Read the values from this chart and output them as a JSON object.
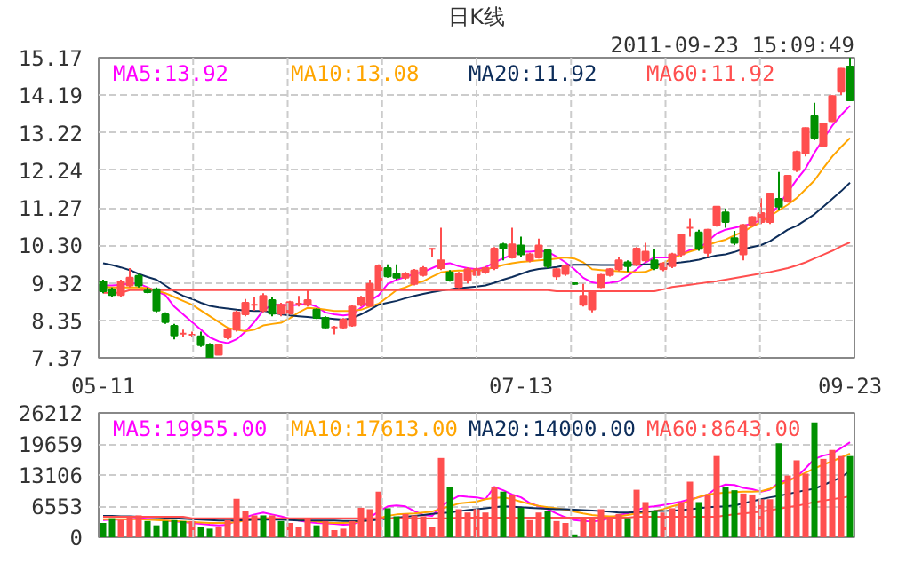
{
  "chart_data": [
    {
      "type": "candlestick",
      "title": "日K线",
      "annotations": [
        "2011-09-23 15:09:49"
      ],
      "categories": [
        "05-11",
        null,
        null,
        null,
        null,
        null,
        null,
        null,
        null,
        null,
        null,
        null,
        null,
        null,
        null,
        null,
        null,
        null,
        null,
        null,
        null,
        null,
        null,
        null,
        null,
        null,
        null,
        null,
        null,
        null,
        null,
        null,
        null,
        null,
        null,
        null,
        null,
        null,
        null,
        null,
        null,
        null,
        null,
        null,
        null,
        null,
        null,
        "07-13",
        null,
        null,
        null,
        null,
        null,
        null,
        null,
        null,
        null,
        null,
        null,
        null,
        null,
        null,
        null,
        null,
        null,
        null,
        null,
        null,
        null,
        null,
        null,
        null,
        null,
        null,
        null,
        null,
        null,
        null,
        null,
        null,
        null,
        null,
        null,
        null,
        "09-23"
      ],
      "ohlc": [
        [
          9.35,
          9.4,
          9.05,
          9.1
        ],
        [
          9.15,
          9.2,
          8.95,
          9.0
        ],
        [
          9.0,
          9.4,
          8.95,
          9.35
        ],
        [
          9.25,
          9.7,
          9.2,
          9.45
        ],
        [
          9.5,
          9.55,
          9.2,
          9.25
        ],
        [
          9.12,
          9.2,
          9.05,
          9.08
        ],
        [
          9.15,
          9.2,
          8.55,
          8.6
        ],
        [
          8.5,
          8.55,
          8.25,
          8.3
        ],
        [
          8.2,
          8.25,
          7.85,
          7.95
        ],
        [
          8.0,
          8.1,
          7.9,
          8.0
        ],
        [
          7.97,
          8.05,
          7.9,
          7.97
        ],
        [
          7.93,
          8.05,
          7.65,
          7.7
        ],
        [
          7.7,
          7.75,
          7.37,
          7.37
        ],
        [
          7.45,
          7.7,
          7.45,
          7.7
        ],
        [
          7.9,
          8.15,
          7.85,
          8.1
        ],
        [
          8.1,
          8.6,
          8.05,
          8.55
        ],
        [
          8.5,
          8.9,
          8.45,
          8.8
        ],
        [
          8.75,
          8.95,
          8.6,
          8.75
        ],
        [
          8.6,
          9.05,
          8.55,
          8.98
        ],
        [
          8.87,
          8.95,
          8.45,
          8.52
        ],
        [
          8.52,
          8.8,
          8.45,
          8.75
        ],
        [
          8.52,
          8.85,
          8.5,
          8.82
        ],
        [
          8.78,
          8.98,
          8.7,
          8.78
        ],
        [
          8.75,
          9.13,
          8.7,
          8.87
        ],
        [
          8.62,
          8.65,
          8.38,
          8.41
        ],
        [
          8.41,
          8.45,
          8.14,
          8.16
        ],
        [
          8.16,
          8.2,
          7.98,
          8.16
        ],
        [
          8.16,
          8.4,
          8.12,
          8.36
        ],
        [
          8.21,
          8.75,
          8.18,
          8.7
        ],
        [
          8.75,
          8.98,
          8.7,
          8.94
        ],
        [
          8.72,
          9.4,
          8.7,
          9.29
        ],
        [
          9.13,
          9.8,
          9.1,
          9.75
        ],
        [
          9.7,
          9.8,
          9.45,
          9.49
        ],
        [
          9.55,
          9.8,
          9.4,
          9.45
        ],
        [
          9.45,
          9.6,
          9.4,
          9.55
        ],
        [
          9.29,
          9.68,
          9.25,
          9.64
        ],
        [
          9.52,
          9.75,
          9.48,
          9.7
        ],
        [
          10.2,
          10.22,
          9.98,
          10.2
        ],
        [
          9.7,
          10.75,
          9.65,
          9.9
        ],
        [
          9.59,
          9.65,
          9.35,
          9.39
        ],
        [
          9.21,
          9.6,
          9.18,
          9.55
        ],
        [
          9.39,
          9.72,
          9.3,
          9.67
        ],
        [
          9.52,
          9.72,
          9.48,
          9.67
        ],
        [
          9.6,
          9.75,
          9.55,
          9.7
        ],
        [
          9.7,
          10.25,
          9.65,
          10.21
        ],
        [
          10.32,
          10.36,
          9.9,
          10.21
        ],
        [
          9.98,
          10.75,
          9.95,
          10.32
        ],
        [
          10.29,
          10.52,
          9.98,
          10.06
        ],
        [
          9.9,
          10.1,
          9.85,
          10.06
        ],
        [
          9.98,
          10.47,
          9.95,
          10.29
        ],
        [
          10.16,
          10.21,
          9.7,
          9.75
        ],
        [
          9.49,
          9.7,
          9.4,
          9.67
        ],
        [
          9.55,
          9.8,
          9.5,
          9.75
        ],
        [
          9.31,
          9.33,
          9.27,
          9.29
        ],
        [
          8.75,
          9.29,
          8.7,
          8.98
        ],
        [
          8.63,
          9.12,
          8.55,
          9.09
        ],
        [
          9.21,
          9.55,
          9.18,
          9.52
        ],
        [
          9.52,
          9.7,
          9.48,
          9.67
        ],
        [
          9.67,
          10.0,
          9.62,
          9.9
        ],
        [
          9.85,
          9.9,
          9.6,
          9.75
        ],
        [
          9.79,
          10.25,
          9.75,
          10.21
        ],
        [
          9.9,
          10.36,
          9.85,
          10.13
        ],
        [
          9.9,
          10.21,
          9.65,
          9.7
        ],
        [
          9.67,
          9.85,
          9.62,
          9.82
        ],
        [
          9.75,
          10.1,
          9.7,
          10.06
        ],
        [
          10.06,
          10.6,
          10.0,
          10.57
        ],
        [
          10.75,
          10.98,
          10.52,
          10.75
        ],
        [
          10.63,
          10.7,
          10.15,
          10.2
        ],
        [
          10.1,
          10.72,
          9.98,
          10.7
        ],
        [
          10.82,
          11.3,
          10.78,
          11.3
        ],
        [
          11.15,
          11.25,
          10.75,
          10.9
        ],
        [
          10.48,
          10.67,
          10.3,
          10.36
        ],
        [
          10.06,
          10.85,
          9.9,
          10.82
        ],
        [
          10.82,
          11.05,
          10.78,
          11.03
        ],
        [
          10.9,
          11.52,
          10.85,
          11.13
        ],
        [
          10.9,
          11.66,
          10.85,
          11.64
        ],
        [
          11.5,
          12.2,
          11.2,
          11.3
        ],
        [
          11.45,
          12.12,
          11.4,
          12.1
        ],
        [
          12.25,
          12.75,
          12.2,
          12.72
        ],
        [
          12.68,
          13.36,
          12.6,
          13.34
        ],
        [
          13.65,
          14.0,
          13.03,
          13.09
        ],
        [
          12.88,
          13.48,
          12.85,
          13.46
        ],
        [
          13.52,
          14.19,
          13.5,
          14.17
        ],
        [
          14.29,
          14.9,
          14.2,
          14.88
        ],
        [
          14.94,
          15.17,
          14.06,
          14.06
        ]
      ],
      "colors": [
        "#009000",
        "#009000",
        "#ff4f4f",
        "#ff4f4f",
        "#009000",
        "#009000",
        "#009000",
        "#009000",
        "#009000",
        "#ff4f4f",
        "#ff4f4f",
        "#009000",
        "#009000",
        "#ff4f4f",
        "#ff4f4f",
        "#ff4f4f",
        "#ff4f4f",
        "#ff4f4f",
        "#ff4f4f",
        "#009000",
        "#ff4f4f",
        "#ff4f4f",
        "#ff4f4f",
        "#ff4f4f",
        "#009000",
        "#009000",
        "#ff4f4f",
        "#ff4f4f",
        "#ff4f4f",
        "#ff4f4f",
        "#ff4f4f",
        "#ff4f4f",
        "#009000",
        "#009000",
        "#ff4f4f",
        "#ff4f4f",
        "#ff4f4f",
        "#ff4f4f",
        "#ff4f4f",
        "#009000",
        "#ff4f4f",
        "#ff4f4f",
        "#ff4f4f",
        "#ff4f4f",
        "#ff4f4f",
        "#009000",
        "#ff4f4f",
        "#009000",
        "#ff4f4f",
        "#ff4f4f",
        "#009000",
        "#ff4f4f",
        "#ff4f4f",
        "#009000",
        "#ff4f4f",
        "#ff4f4f",
        "#ff4f4f",
        "#ff4f4f",
        "#ff4f4f",
        "#009000",
        "#ff4f4f",
        "#ff4f4f",
        "#009000",
        "#ff4f4f",
        "#ff4f4f",
        "#ff4f4f",
        "#ff4f4f",
        "#009000",
        "#ff4f4f",
        "#ff4f4f",
        "#009000",
        "#009000",
        "#ff4f4f",
        "#ff4f4f",
        "#ff4f4f",
        "#ff4f4f",
        "#009000",
        "#ff4f4f",
        "#ff4f4f",
        "#ff4f4f",
        "#009000",
        "#ff4f4f",
        "#ff4f4f",
        "#ff4f4f",
        "#009000"
      ],
      "series": [
        {
          "name": "MA5:13.92",
          "type": "line",
          "color": "#ff00ff",
          "values": [
            9.25,
            9.25,
            9.27,
            9.3,
            9.3,
            9.2,
            9.1,
            9.0,
            8.7,
            8.5,
            8.3,
            8.1,
            7.9,
            7.8,
            7.75,
            7.85,
            8.05,
            8.3,
            8.6,
            8.75,
            8.75,
            8.73,
            8.75,
            8.78,
            8.7,
            8.55,
            8.5,
            8.47,
            8.5,
            8.67,
            8.85,
            9.0,
            9.29,
            9.4,
            9.47,
            9.55,
            9.6,
            9.7,
            9.8,
            9.83,
            9.75,
            9.7,
            9.67,
            9.72,
            9.85,
            9.95,
            10.05,
            10.13,
            10.13,
            10.15,
            10.13,
            10.0,
            9.85,
            9.67,
            9.45,
            9.33,
            9.29,
            9.32,
            9.36,
            9.5,
            9.67,
            9.85,
            9.98,
            9.98,
            9.98,
            10.06,
            10.17,
            10.21,
            10.4,
            10.6,
            10.7,
            10.75,
            10.8,
            10.87,
            10.95,
            11.06,
            11.35,
            11.67,
            12.0,
            12.29,
            12.7,
            13.06,
            13.4,
            13.68,
            13.92
          ]
        },
        {
          "name": "MA10:13.08",
          "type": "line",
          "color": "#ffa500",
          "values": [
            9.21,
            9.2,
            9.2,
            9.2,
            9.2,
            9.18,
            9.12,
            9.05,
            8.95,
            8.85,
            8.75,
            8.6,
            8.45,
            8.3,
            8.15,
            8.1,
            8.06,
            8.1,
            8.21,
            8.25,
            8.28,
            8.4,
            8.55,
            8.67,
            8.65,
            8.62,
            8.59,
            8.59,
            8.59,
            8.62,
            8.7,
            8.78,
            8.95,
            9.13,
            9.2,
            9.3,
            9.36,
            9.48,
            9.59,
            9.62,
            9.64,
            9.64,
            9.62,
            9.67,
            9.72,
            9.78,
            9.83,
            9.86,
            9.88,
            9.9,
            9.92,
            9.95,
            9.98,
            9.95,
            9.85,
            9.67,
            9.65,
            9.63,
            9.62,
            9.6,
            9.59,
            9.6,
            9.7,
            9.83,
            9.95,
            10.05,
            10.13,
            10.2,
            10.3,
            10.38,
            10.44,
            10.55,
            10.65,
            10.78,
            10.9,
            11.05,
            11.2,
            11.35,
            11.52,
            11.75,
            11.98,
            12.3,
            12.6,
            12.85,
            13.08
          ]
        },
        {
          "name": "MA20:11.92",
          "type": "line",
          "color": "#0d2d5a",
          "values": [
            9.83,
            9.78,
            9.72,
            9.65,
            9.55,
            9.47,
            9.4,
            9.25,
            9.1,
            8.98,
            8.9,
            8.8,
            8.72,
            8.68,
            8.65,
            8.62,
            8.6,
            8.59,
            8.59,
            8.55,
            8.5,
            8.47,
            8.45,
            8.43,
            8.41,
            8.4,
            8.38,
            8.36,
            8.4,
            8.5,
            8.62,
            8.75,
            8.8,
            8.85,
            8.92,
            8.98,
            9.03,
            9.08,
            9.12,
            9.15,
            9.18,
            9.2,
            9.22,
            9.25,
            9.32,
            9.4,
            9.47,
            9.55,
            9.63,
            9.68,
            9.7,
            9.73,
            9.77,
            9.79,
            9.79,
            9.79,
            9.78,
            9.78,
            9.78,
            9.79,
            9.79,
            9.8,
            9.8,
            9.81,
            9.83,
            9.85,
            9.88,
            9.92,
            9.98,
            10.03,
            10.06,
            10.12,
            10.2,
            10.25,
            10.3,
            10.4,
            10.55,
            10.7,
            10.8,
            10.95,
            11.1,
            11.3,
            11.5,
            11.7,
            11.92
          ]
        },
        {
          "name": "MA60:11.92",
          "type": "line",
          "color": "#ff4f4f",
          "values": [
            9.06,
            9.06,
            9.06,
            9.13,
            9.13,
            9.13,
            9.13,
            9.13,
            9.13,
            9.13,
            9.13,
            9.13,
            9.13,
            9.13,
            9.13,
            9.13,
            9.13,
            9.13,
            9.13,
            9.13,
            9.13,
            9.13,
            9.13,
            9.13,
            9.13,
            9.13,
            9.13,
            9.13,
            9.13,
            9.13,
            9.13,
            9.13,
            9.13,
            9.13,
            9.13,
            9.13,
            9.13,
            9.13,
            9.13,
            9.13,
            9.13,
            9.13,
            9.13,
            9.13,
            9.13,
            9.13,
            9.13,
            9.13,
            9.13,
            9.13,
            9.13,
            9.1,
            9.1,
            9.1,
            9.1,
            9.1,
            9.1,
            9.1,
            9.1,
            9.1,
            9.1,
            9.1,
            9.1,
            9.15,
            9.21,
            9.24,
            9.27,
            9.3,
            9.33,
            9.36,
            9.4,
            9.44,
            9.48,
            9.52,
            9.56,
            9.6,
            9.65,
            9.7,
            9.77,
            9.85,
            9.95,
            10.05,
            10.15,
            10.27,
            10.37
          ]
        }
      ],
      "ylim": [
        7.37,
        15.17
      ],
      "yticks": [
        7.37,
        8.35,
        9.32,
        {
          "value": 10.3,
          "label": "10.30"
        },
        11.27,
        12.24,
        13.22,
        14.19,
        15.17
      ],
      "grid": true,
      "legend": "top"
    },
    {
      "type": "bar",
      "values": [
        3000,
        4000,
        3600,
        4400,
        4600,
        3400,
        2500,
        3400,
        3600,
        3400,
        3400,
        2100,
        1800,
        2100,
        3600,
        8100,
        5500,
        4600,
        4600,
        4600,
        3400,
        3000,
        2100,
        4000,
        2500,
        3400,
        1500,
        1800,
        3400,
        6200,
        5900,
        9600,
        6100,
        4400,
        4900,
        4600,
        4400,
        2100,
        16700,
        10600,
        5900,
        5200,
        5900,
        5200,
        10600,
        9600,
        9000,
        6200,
        3600,
        5200,
        5600,
        3400,
        3000,
        600,
        4200,
        4000,
        5900,
        4200,
        4900,
        4000,
        10000,
        7400,
        5500,
        5200,
        6100,
        7400,
        11700,
        7400,
        9000,
        17100,
        10600,
        9900,
        9200,
        9000,
        8000,
        8000,
        19800,
        13000,
        16200,
        13400,
        24200,
        16500,
        18400,
        17100,
        17100
      ],
      "colors": [
        "#009000",
        "#009000",
        "#ff4f4f",
        "#ff4f4f",
        "#ff4f4f",
        "#009000",
        "#009000",
        "#009000",
        "#009000",
        "#009000",
        "#ff4f4f",
        "#009000",
        "#009000",
        "#ff4f4f",
        "#ff4f4f",
        "#ff4f4f",
        "#ff4f4f",
        "#ff4f4f",
        "#009000",
        "#ff4f4f",
        "#009000",
        "#ff4f4f",
        "#ff4f4f",
        "#ff4f4f",
        "#009000",
        "#ff4f4f",
        "#ff4f4f",
        "#ff4f4f",
        "#ff4f4f",
        "#ff4f4f",
        "#ff4f4f",
        "#ff4f4f",
        "#009000",
        "#009000",
        "#ff4f4f",
        "#ff4f4f",
        "#ff4f4f",
        "#ff4f4f",
        "#ff4f4f",
        "#009000",
        "#ff4f4f",
        "#ff4f4f",
        "#ff4f4f",
        "#ff4f4f",
        "#ff4f4f",
        "#009000",
        "#ff4f4f",
        "#009000",
        "#ff4f4f",
        "#ff4f4f",
        "#009000",
        "#ff4f4f",
        "#ff4f4f",
        "#009000",
        "#ff4f4f",
        "#ff4f4f",
        "#ff4f4f",
        "#ff4f4f",
        "#ff4f4f",
        "#009000",
        "#ff4f4f",
        "#ff4f4f",
        "#009000",
        "#ff4f4f",
        "#ff4f4f",
        "#ff4f4f",
        "#ff4f4f",
        "#009000",
        "#ff4f4f",
        "#ff4f4f",
        "#009000",
        "#009000",
        "#ff4f4f",
        "#ff4f4f",
        "#ff4f4f",
        "#ff4f4f",
        "#009000",
        "#ff4f4f",
        "#ff4f4f",
        "#ff4f4f",
        "#009000",
        "#ff4f4f",
        "#ff4f4f",
        "#ff4f4f",
        "#009000"
      ],
      "series": [
        {
          "name": "MA5:19955.00",
          "type": "line",
          "color": "#ff00ff",
          "values": [
            3600,
            3700,
            3700,
            3800,
            4000,
            3900,
            3800,
            3500,
            3300,
            3200,
            3000,
            2800,
            2600,
            2500,
            2600,
            3500,
            4200,
            4800,
            5200,
            4800,
            4400,
            3900,
            3500,
            3200,
            3000,
            2900,
            2800,
            2600,
            2700,
            3300,
            4200,
            5400,
            6500,
            6700,
            6500,
            5500,
            4700,
            4500,
            6500,
            7700,
            8700,
            8500,
            8400,
            8000,
            10600,
            9900,
            9000,
            8400,
            7200,
            6500,
            5900,
            5000,
            4200,
            3600,
            3400,
            3300,
            3500,
            4000,
            4700,
            5000,
            5700,
            6300,
            6500,
            6800,
            7100,
            7500,
            8000,
            8400,
            9000,
            10400,
            11100,
            11000,
            10400,
            10100,
            9600,
            10000,
            11500,
            12000,
            12700,
            14500,
            16500,
            17200,
            17600,
            18800,
            20000
          ]
        },
        {
          "name": "MA10:17613.00",
          "type": "line",
          "color": "#ffa500",
          "values": [
            3800,
            3800,
            3800,
            3800,
            3800,
            3700,
            3600,
            3500,
            3400,
            3300,
            3200,
            3100,
            3000,
            3000,
            3000,
            3200,
            3500,
            3800,
            4000,
            4000,
            3900,
            3800,
            3700,
            3500,
            3300,
            3100,
            3000,
            3000,
            3100,
            3300,
            3600,
            4000,
            4500,
            4800,
            4900,
            5000,
            5200,
            5400,
            6000,
            6500,
            7100,
            7300,
            7500,
            8000,
            8300,
            8400,
            8000,
            7500,
            7000,
            6600,
            6300,
            6100,
            5800,
            5400,
            5000,
            4700,
            4500,
            4400,
            4400,
            4700,
            5000,
            5200,
            5500,
            5900,
            6500,
            7000,
            7700,
            8500,
            9000,
            9200,
            9400,
            9500,
            9600,
            9600,
            9700,
            10200,
            11000,
            11800,
            12700,
            13600,
            14500,
            15300,
            16000,
            16800,
            17600
          ]
        },
        {
          "name": "MA20:14000.00",
          "type": "line",
          "color": "#0d2d5a",
          "values": [
            4500,
            4500,
            4400,
            4400,
            4300,
            4300,
            4200,
            4100,
            4000,
            3900,
            3800,
            3700,
            3600,
            3500,
            3500,
            3500,
            3600,
            3700,
            3700,
            3700,
            3700,
            3600,
            3500,
            3500,
            3500,
            3500,
            3500,
            3400,
            3400,
            3400,
            3500,
            3700,
            3900,
            4100,
            4300,
            4500,
            4700,
            4900,
            5100,
            5200,
            5500,
            5700,
            5900,
            6100,
            6300,
            6500,
            6400,
            6300,
            6200,
            6100,
            6000,
            5900,
            5900,
            5800,
            5700,
            5600,
            5500,
            5400,
            5200,
            5200,
            5300,
            5400,
            5500,
            5500,
            5600,
            5700,
            5900,
            6100,
            6300,
            6400,
            6500,
            6700,
            7100,
            7600,
            8000,
            8400,
            8700,
            9100,
            9500,
            9900,
            10200,
            11000,
            11800,
            12600,
            14000
          ]
        },
        {
          "name": "MA60:8643.00",
          "type": "line",
          "color": "#ff4f4f",
          "values": [
            4300,
            4300,
            4300,
            4300,
            4300,
            4300,
            4300,
            4300,
            4300,
            4300,
            4000,
            4000,
            4000,
            4000,
            4000,
            4000,
            4000,
            4000,
            4000,
            4000,
            4000,
            4000,
            4000,
            4000,
            4000,
            4000,
            4000,
            4000,
            4000,
            4000,
            4000,
            4000,
            4000,
            4000,
            4000,
            4000,
            4000,
            4000,
            4000,
            4000,
            4100,
            4100,
            4100,
            4100,
            4100,
            4100,
            4100,
            4100,
            4100,
            4100,
            4100,
            4100,
            4100,
            4100,
            4100,
            4100,
            4100,
            4100,
            4100,
            4100,
            4300,
            4300,
            4300,
            4300,
            4300,
            4300,
            4300,
            4300,
            4300,
            4300,
            4600,
            4800,
            5000,
            5200,
            5400,
            5700,
            6000,
            6300,
            6600,
            7000,
            7400,
            7700,
            8000,
            8300,
            8600
          ]
        }
      ],
      "ylim": [
        0,
        26212
      ],
      "yticks": [
        0,
        6553,
        13106,
        19659,
        26212
      ],
      "grid": true,
      "legend": "top",
      "tick_labels": "y"
    }
  ]
}
